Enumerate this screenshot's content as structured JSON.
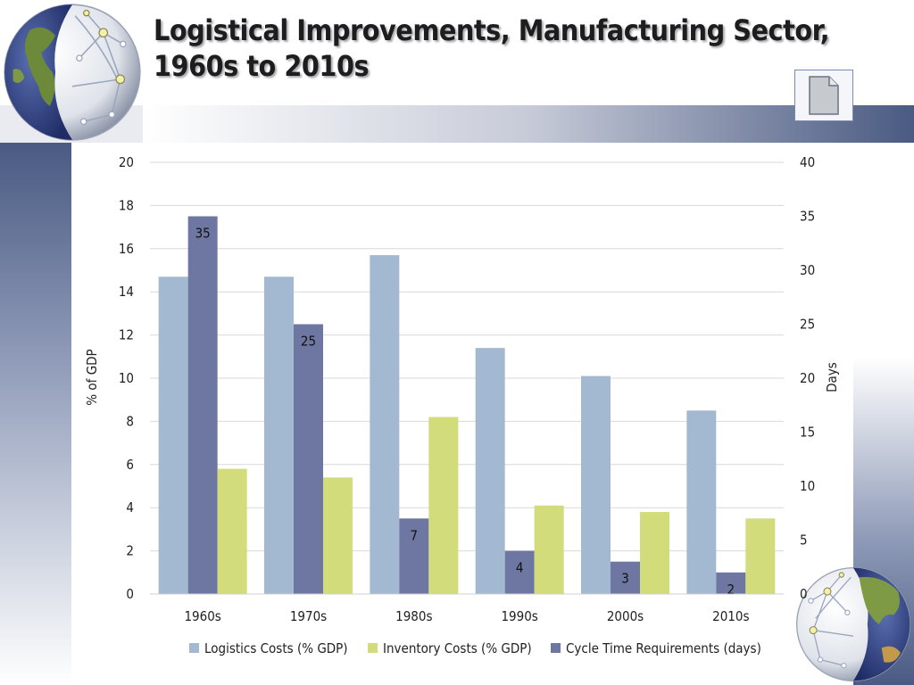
{
  "slide": {
    "title": "Logistical Improvements, Manufacturing Sector, 1960s to 2010s"
  },
  "icons": {
    "globe": "globe-network-icon",
    "document": "document-icon"
  },
  "chart_data": {
    "type": "bar",
    "categories": [
      "1960s",
      "1970s",
      "1980s",
      "1990s",
      "2000s",
      "2010s"
    ],
    "series": [
      {
        "name": "Logistics Costs (% GDP)",
        "axis": "left",
        "color": "#a3b9d1",
        "values": [
          14.7,
          14.7,
          15.7,
          11.4,
          10.1,
          8.5
        ]
      },
      {
        "name": "Cycle Time Requirements (days)",
        "axis": "right",
        "color": "#6e77a1",
        "values": [
          35,
          25,
          7,
          4,
          3,
          2
        ],
        "data_labels": [
          "35",
          "25",
          "7",
          "4",
          "3",
          "2"
        ]
      },
      {
        "name": "Inventory Costs (% GDP)",
        "axis": "left",
        "color": "#d3dc7a",
        "values": [
          5.8,
          5.4,
          8.2,
          4.1,
          3.8,
          3.5
        ]
      }
    ],
    "legend_order": [
      0,
      2,
      1
    ],
    "ylabel": "% of GDP",
    "y2label": "Days",
    "ylim": [
      0,
      20
    ],
    "y2lim": [
      0,
      40
    ],
    "yticks": [
      "0",
      "2",
      "4",
      "6",
      "8",
      "10",
      "12",
      "14",
      "16",
      "18",
      "20"
    ],
    "y2ticks": [
      "0",
      "5",
      "10",
      "15",
      "20",
      "25",
      "30",
      "35",
      "40"
    ],
    "grid": true,
    "legend_position": "bottom"
  }
}
